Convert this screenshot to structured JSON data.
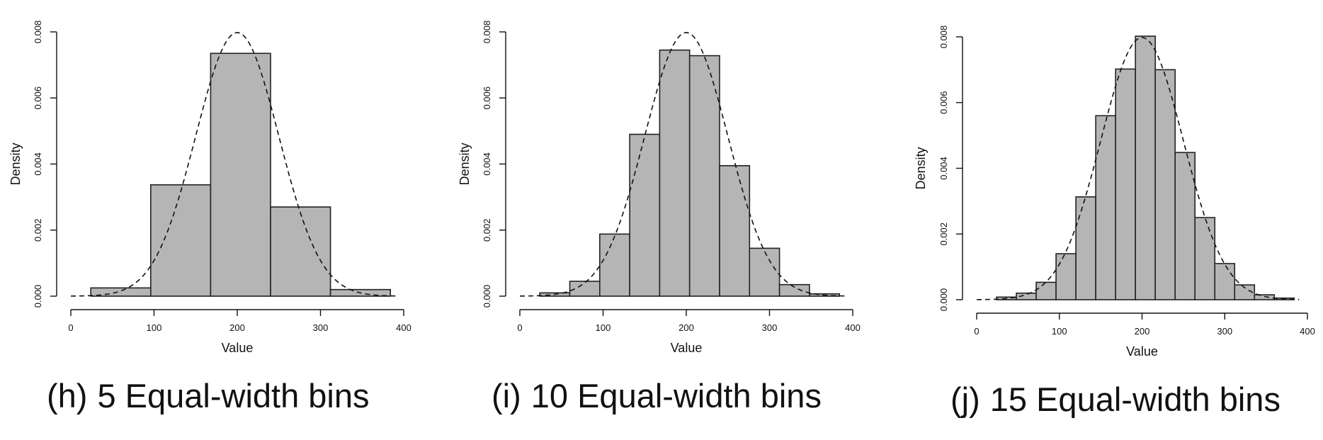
{
  "chart_data": [
    {
      "type": "bar",
      "caption_tag": "(h)",
      "caption_text": "5 Equal-width bins",
      "xlabel": "Value",
      "ylabel": "Density",
      "xlim": [
        0,
        400
      ],
      "ylim": [
        0,
        0.008
      ],
      "x_ticks": [
        "0",
        "100",
        "200",
        "300",
        "400"
      ],
      "y_ticks": [
        "0.000",
        "0.002",
        "0.004",
        "0.006",
        "0.008"
      ],
      "grid": false,
      "bins": [
        {
          "start": 24,
          "end": 96,
          "density": 0.00025
        },
        {
          "start": 96,
          "end": 168,
          "density": 0.00337
        },
        {
          "start": 168,
          "end": 240,
          "density": 0.00735
        },
        {
          "start": 240,
          "end": 312,
          "density": 0.0027
        },
        {
          "start": 312,
          "end": 384,
          "density": 0.0002
        }
      ],
      "density_curve": {
        "type": "normal",
        "mean": 200,
        "sd": 50,
        "style": "dashed",
        "x_range": [
          0,
          390
        ]
      }
    },
    {
      "type": "bar",
      "caption_tag": "(i)",
      "caption_text": "10 Equal-width bins",
      "xlabel": "Value",
      "ylabel": "Density",
      "xlim": [
        0,
        400
      ],
      "ylim": [
        0,
        0.008
      ],
      "x_ticks": [
        "0",
        "100",
        "200",
        "300",
        "400"
      ],
      "y_ticks": [
        "0.000",
        "0.002",
        "0.004",
        "0.006",
        "0.008"
      ],
      "grid": false,
      "bins": [
        {
          "start": 24,
          "end": 60,
          "density": 0.0001
        },
        {
          "start": 60,
          "end": 96,
          "density": 0.00045
        },
        {
          "start": 96,
          "end": 132,
          "density": 0.00188
        },
        {
          "start": 132,
          "end": 168,
          "density": 0.0049
        },
        {
          "start": 168,
          "end": 204,
          "density": 0.00745
        },
        {
          "start": 204,
          "end": 240,
          "density": 0.00728
        },
        {
          "start": 240,
          "end": 276,
          "density": 0.00395
        },
        {
          "start": 276,
          "end": 312,
          "density": 0.00145
        },
        {
          "start": 312,
          "end": 348,
          "density": 0.00035
        },
        {
          "start": 348,
          "end": 384,
          "density": 7e-05
        }
      ],
      "density_curve": {
        "type": "normal",
        "mean": 200,
        "sd": 50,
        "style": "dashed",
        "x_range": [
          0,
          390
        ]
      }
    },
    {
      "type": "bar",
      "caption_tag": "(j)",
      "caption_text": "15 Equal-width bins",
      "xlabel": "Value",
      "ylabel": "Density",
      "xlim": [
        0,
        400
      ],
      "ylim": [
        0,
        0.008
      ],
      "x_ticks": [
        "0",
        "100",
        "200",
        "300",
        "400"
      ],
      "y_ticks": [
        "0.000",
        "0.002",
        "0.004",
        "0.006",
        "0.008"
      ],
      "grid": false,
      "bins": [
        {
          "start": 24,
          "end": 48,
          "density": 8e-05
        },
        {
          "start": 48,
          "end": 72,
          "density": 0.0002
        },
        {
          "start": 72,
          "end": 96,
          "density": 0.00053
        },
        {
          "start": 96,
          "end": 120,
          "density": 0.0014
        },
        {
          "start": 120,
          "end": 144,
          "density": 0.00313
        },
        {
          "start": 144,
          "end": 168,
          "density": 0.0056
        },
        {
          "start": 168,
          "end": 192,
          "density": 0.00702
        },
        {
          "start": 192,
          "end": 216,
          "density": 0.00802
        },
        {
          "start": 216,
          "end": 240,
          "density": 0.007
        },
        {
          "start": 240,
          "end": 264,
          "density": 0.00448
        },
        {
          "start": 264,
          "end": 288,
          "density": 0.0025
        },
        {
          "start": 288,
          "end": 312,
          "density": 0.0011
        },
        {
          "start": 312,
          "end": 336,
          "density": 0.00045
        },
        {
          "start": 336,
          "end": 360,
          "density": 0.00015
        },
        {
          "start": 360,
          "end": 384,
          "density": 5e-05
        }
      ],
      "density_curve": {
        "type": "normal",
        "mean": 200,
        "sd": 50,
        "style": "dashed",
        "x_range": [
          0,
          390
        ]
      }
    }
  ],
  "colors": {
    "bar_fill": "#b5b5b5",
    "bar_stroke": "#222222",
    "curve": "#111111",
    "axis": "#111111"
  }
}
